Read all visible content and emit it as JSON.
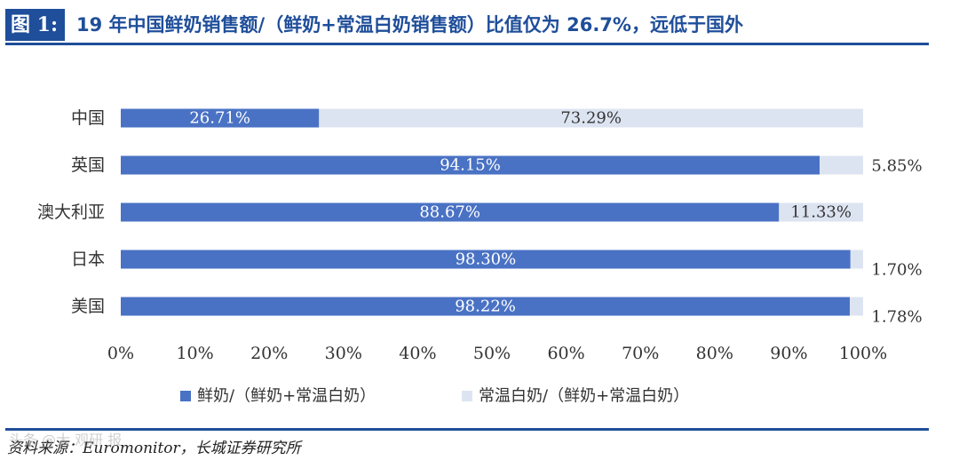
{
  "header": {
    "figure_label": "图 1:",
    "title": "19 年中国鲜奶销售额/（鲜奶+常温白奶销售额）比值仅为 26.7%，远低于国外"
  },
  "footer": {
    "source": "资料来源：Euromonitor，长城证券研究所",
    "watermark": "头条 @大 观研 报"
  },
  "chart_data": {
    "type": "bar",
    "orientation": "horizontal",
    "stacked": true,
    "categories": [
      "中国",
      "英国",
      "澳大利亚",
      "日本",
      "美国"
    ],
    "series": [
      {
        "name": "鲜奶/（鲜奶+常温白奶）",
        "color": "#4a72c4",
        "values": [
          26.71,
          94.15,
          88.67,
          98.3,
          98.22
        ],
        "labels": [
          "26.71%",
          "94.15%",
          "88.67%",
          "98.30%",
          "98.22%"
        ]
      },
      {
        "name": "常温白奶/（鲜奶+常温白奶）",
        "color": "#dde4f1",
        "values": [
          73.29,
          5.85,
          11.33,
          1.7,
          1.78
        ],
        "labels": [
          "73.29%",
          "5.85%",
          "11.33%",
          "1.70%",
          "1.78%"
        ]
      }
    ],
    "xlim": [
      0,
      100
    ],
    "x_ticks": [
      "0%",
      "10%",
      "20%",
      "30%",
      "40%",
      "50%",
      "60%",
      "70%",
      "80%",
      "90%",
      "100%"
    ],
    "grid": false,
    "legend_position": "bottom"
  }
}
